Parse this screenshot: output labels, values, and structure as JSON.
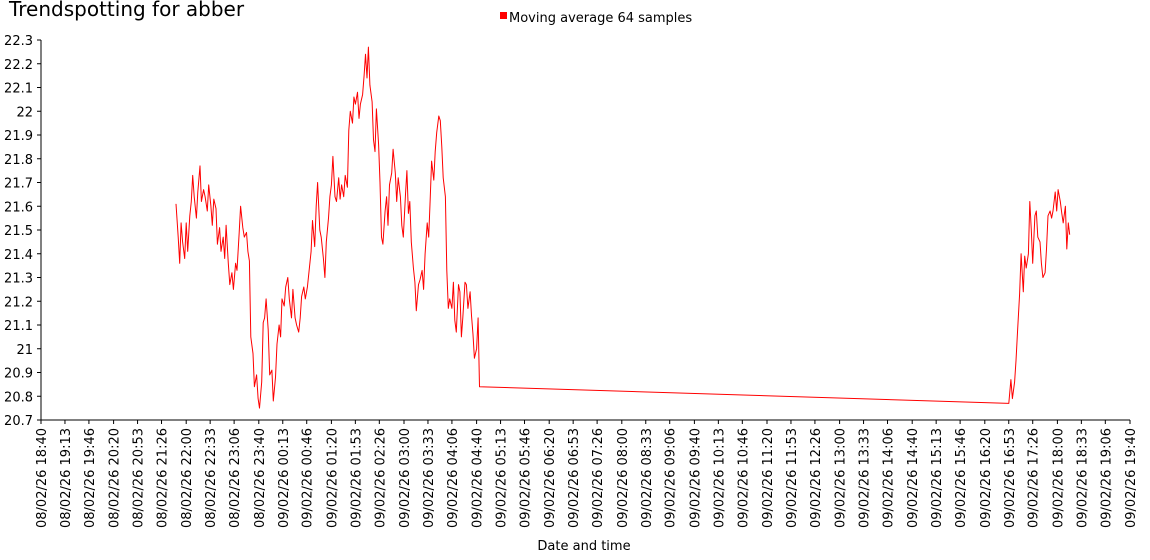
{
  "chart_data": {
    "type": "line",
    "title": "Trendspotting for abber",
    "xlabel": "Date and time",
    "ylabel": "",
    "legend_position": "top-center",
    "grid": false,
    "ylim": [
      20.7,
      22.3
    ],
    "y_ticks": [
      "20.7",
      "20.8",
      "20.9",
      "21",
      "21.1",
      "21.2",
      "21.3",
      "21.4",
      "21.5",
      "21.6",
      "21.7",
      "21.8",
      "21.9",
      "22",
      "22.1",
      "22.2",
      "22.3"
    ],
    "x_range": [
      "08/02/26 18:40",
      "09/02/26 19:40"
    ],
    "x_ticks": [
      "08/02/26 18:40",
      "08/02/26 19:13",
      "08/02/26 19:46",
      "08/02/26 20:20",
      "08/02/26 20:53",
      "08/02/26 21:26",
      "08/02/26 22:00",
      "08/02/26 22:33",
      "08/02/26 23:06",
      "08/02/26 23:40",
      "09/02/26 00:13",
      "09/02/26 00:46",
      "09/02/26 01:20",
      "09/02/26 01:53",
      "09/02/26 02:26",
      "09/02/26 03:00",
      "09/02/26 03:33",
      "09/02/26 04:06",
      "09/02/26 04:40",
      "09/02/26 05:13",
      "09/02/26 05:46",
      "09/02/26 06:20",
      "09/02/26 06:53",
      "09/02/26 07:26",
      "09/02/26 08:00",
      "09/02/26 08:33",
      "09/02/26 09:06",
      "09/02/26 09:40",
      "09/02/26 10:13",
      "09/02/26 10:46",
      "09/02/26 11:20",
      "09/02/26 11:53",
      "09/02/26 12:26",
      "09/02/26 13:00",
      "09/02/26 13:33",
      "09/02/26 14:06",
      "09/02/26 14:40",
      "09/02/26 15:13",
      "09/02/26 15:46",
      "09/02/26 16:20",
      "09/02/26 16:53",
      "09/02/26 17:26",
      "09/02/26 18:00",
      "09/02/26 18:33",
      "09/02/26 19:06",
      "09/02/26 19:40"
    ],
    "series": [
      {
        "name": "Moving average 64 samples",
        "color": "#ff0000",
        "points": [
          [
            "08/02/26 21:46",
            21.61
          ],
          [
            "08/02/26 21:49",
            21.47
          ],
          [
            "08/02/26 21:51",
            21.36
          ],
          [
            "08/02/26 21:53",
            21.53
          ],
          [
            "08/02/26 21:55",
            21.45
          ],
          [
            "08/02/26 21:58",
            21.38
          ],
          [
            "08/02/26 22:00",
            21.53
          ],
          [
            "08/02/26 22:02",
            21.41
          ],
          [
            "08/02/26 22:05",
            21.56
          ],
          [
            "08/02/26 22:07",
            21.62
          ],
          [
            "08/02/26 22:09",
            21.73
          ],
          [
            "08/02/26 22:11",
            21.64
          ],
          [
            "08/02/26 22:14",
            21.55
          ],
          [
            "08/02/26 22:16",
            21.66
          ],
          [
            "08/02/26 22:19",
            21.77
          ],
          [
            "08/02/26 22:21",
            21.62
          ],
          [
            "08/02/26 22:24",
            21.67
          ],
          [
            "08/02/26 22:26",
            21.64
          ],
          [
            "08/02/26 22:29",
            21.58
          ],
          [
            "08/02/26 22:31",
            21.69
          ],
          [
            "08/02/26 22:34",
            21.6
          ],
          [
            "08/02/26 22:36",
            21.52
          ],
          [
            "08/02/26 22:38",
            21.63
          ],
          [
            "08/02/26 22:41",
            21.59
          ],
          [
            "08/02/26 22:43",
            21.44
          ],
          [
            "08/02/26 22:46",
            21.51
          ],
          [
            "08/02/26 22:48",
            21.41
          ],
          [
            "08/02/26 22:51",
            21.47
          ],
          [
            "08/02/26 22:53",
            21.38
          ],
          [
            "08/02/26 22:55",
            21.52
          ],
          [
            "08/02/26 22:58",
            21.36
          ],
          [
            "08/02/26 23:00",
            21.27
          ],
          [
            "08/02/26 23:03",
            21.32
          ],
          [
            "08/02/26 23:05",
            21.25
          ],
          [
            "08/02/26 23:08",
            21.36
          ],
          [
            "08/02/26 23:10",
            21.33
          ],
          [
            "08/02/26 23:13",
            21.49
          ],
          [
            "08/02/26 23:15",
            21.6
          ],
          [
            "08/02/26 23:18",
            21.51
          ],
          [
            "08/02/26 23:20",
            21.47
          ],
          [
            "08/02/26 23:23",
            21.49
          ],
          [
            "08/02/26 23:25",
            21.41
          ],
          [
            "08/02/26 23:27",
            21.37
          ],
          [
            "08/02/26 23:29",
            21.05
          ],
          [
            "08/02/26 23:32",
            20.98
          ],
          [
            "08/02/26 23:34",
            20.84
          ],
          [
            "08/02/26 23:37",
            20.89
          ],
          [
            "08/02/26 23:39",
            20.79
          ],
          [
            "08/02/26 23:41",
            20.75
          ],
          [
            "08/02/26 23:44",
            20.86
          ],
          [
            "08/02/26 23:46",
            21.11
          ],
          [
            "08/02/26 23:48",
            21.13
          ],
          [
            "08/02/26 23:50",
            21.21
          ],
          [
            "08/02/26 23:53",
            21.08
          ],
          [
            "08/02/26 23:55",
            20.89
          ],
          [
            "08/02/26 23:58",
            20.91
          ],
          [
            "09/02/26 00:00",
            20.78
          ],
          [
            "09/02/26 00:03",
            20.88
          ],
          [
            "09/02/26 00:05",
            21.02
          ],
          [
            "09/02/26 00:08",
            21.1
          ],
          [
            "09/02/26 00:10",
            21.05
          ],
          [
            "09/02/26 00:12",
            21.21
          ],
          [
            "09/02/26 00:15",
            21.18
          ],
          [
            "09/02/26 00:17",
            21.26
          ],
          [
            "09/02/26 00:20",
            21.3
          ],
          [
            "09/02/26 00:22",
            21.21
          ],
          [
            "09/02/26 00:25",
            21.13
          ],
          [
            "09/02/26 00:27",
            21.25
          ],
          [
            "09/02/26 00:30",
            21.13
          ],
          [
            "09/02/26 00:32",
            21.1
          ],
          [
            "09/02/26 00:35",
            21.07
          ],
          [
            "09/02/26 00:37",
            21.13
          ],
          [
            "09/02/26 00:39",
            21.22
          ],
          [
            "09/02/26 00:42",
            21.26
          ],
          [
            "09/02/26 00:44",
            21.21
          ],
          [
            "09/02/26 00:47",
            21.26
          ],
          [
            "09/02/26 00:49",
            21.32
          ],
          [
            "09/02/26 00:52",
            21.41
          ],
          [
            "09/02/26 00:54",
            21.54
          ],
          [
            "09/02/26 00:57",
            21.43
          ],
          [
            "09/02/26 00:59",
            21.6
          ],
          [
            "09/02/26 01:01",
            21.7
          ],
          [
            "09/02/26 01:04",
            21.5
          ],
          [
            "09/02/26 01:06",
            21.47
          ],
          [
            "09/02/26 01:09",
            21.38
          ],
          [
            "09/02/26 01:11",
            21.3
          ],
          [
            "09/02/26 01:13",
            21.45
          ],
          [
            "09/02/26 01:16",
            21.55
          ],
          [
            "09/02/26 01:18",
            21.64
          ],
          [
            "09/02/26 01:20",
            21.69
          ],
          [
            "09/02/26 01:22",
            21.81
          ],
          [
            "09/02/26 01:25",
            21.64
          ],
          [
            "09/02/26 01:27",
            21.62
          ],
          [
            "09/02/26 01:30",
            21.72
          ],
          [
            "09/02/26 01:32",
            21.63
          ],
          [
            "09/02/26 01:34",
            21.69
          ],
          [
            "09/02/26 01:37",
            21.64
          ],
          [
            "09/02/26 01:39",
            21.73
          ],
          [
            "09/02/26 01:42",
            21.68
          ],
          [
            "09/02/26 01:44",
            21.92
          ],
          [
            "09/02/26 01:46",
            22.0
          ],
          [
            "09/02/26 01:49",
            21.95
          ],
          [
            "09/02/26 01:51",
            22.06
          ],
          [
            "09/02/26 01:53",
            22.03
          ],
          [
            "09/02/26 01:56",
            22.08
          ],
          [
            "09/02/26 01:58",
            21.97
          ],
          [
            "09/02/26 02:00",
            22.03
          ],
          [
            "09/02/26 02:03",
            22.07
          ],
          [
            "09/02/26 02:05",
            22.15
          ],
          [
            "09/02/26 02:07",
            22.24
          ],
          [
            "09/02/26 02:09",
            22.14
          ],
          [
            "09/02/26 02:11",
            22.27
          ],
          [
            "09/02/26 02:13",
            22.11
          ],
          [
            "09/02/26 02:16",
            22.04
          ],
          [
            "09/02/26 02:18",
            21.88
          ],
          [
            "09/02/26 02:20",
            21.83
          ],
          [
            "09/02/26 02:22",
            22.01
          ],
          [
            "09/02/26 02:25",
            21.86
          ],
          [
            "09/02/26 02:27",
            21.7
          ],
          [
            "09/02/26 02:29",
            21.47
          ],
          [
            "09/02/26 02:31",
            21.44
          ],
          [
            "09/02/26 02:34",
            21.58
          ],
          [
            "09/02/26 02:36",
            21.64
          ],
          [
            "09/02/26 02:38",
            21.52
          ],
          [
            "09/02/26 02:40",
            21.69
          ],
          [
            "09/02/26 02:43",
            21.74
          ],
          [
            "09/02/26 02:45",
            21.84
          ],
          [
            "09/02/26 02:48",
            21.74
          ],
          [
            "09/02/26 02:50",
            21.62
          ],
          [
            "09/02/26 02:52",
            21.72
          ],
          [
            "09/02/26 02:55",
            21.64
          ],
          [
            "09/02/26 02:57",
            21.52
          ],
          [
            "09/02/26 02:59",
            21.47
          ],
          [
            "09/02/26 03:02",
            21.65
          ],
          [
            "09/02/26 03:04",
            21.75
          ],
          [
            "09/02/26 03:06",
            21.57
          ],
          [
            "09/02/26 03:08",
            21.62
          ],
          [
            "09/02/26 03:10",
            21.45
          ],
          [
            "09/02/26 03:13",
            21.34
          ],
          [
            "09/02/26 03:15",
            21.28
          ],
          [
            "09/02/26 03:17",
            21.16
          ],
          [
            "09/02/26 03:20",
            21.27
          ],
          [
            "09/02/26 03:22",
            21.29
          ],
          [
            "09/02/26 03:25",
            21.33
          ],
          [
            "09/02/26 03:27",
            21.25
          ],
          [
            "09/02/26 03:29",
            21.4
          ],
          [
            "09/02/26 03:32",
            21.53
          ],
          [
            "09/02/26 03:34",
            21.47
          ],
          [
            "09/02/26 03:36",
            21.62
          ],
          [
            "09/02/26 03:38",
            21.79
          ],
          [
            "09/02/26 03:41",
            21.71
          ],
          [
            "09/02/26 03:43",
            21.83
          ],
          [
            "09/02/26 03:45",
            21.91
          ],
          [
            "09/02/26 03:48",
            21.98
          ],
          [
            "09/02/26 03:50",
            21.96
          ],
          [
            "09/02/26 03:52",
            21.85
          ],
          [
            "09/02/26 03:54",
            21.72
          ],
          [
            "09/02/26 03:57",
            21.64
          ],
          [
            "09/02/26 03:59",
            21.33
          ],
          [
            "09/02/26 04:01",
            21.17
          ],
          [
            "09/02/26 04:03",
            21.21
          ],
          [
            "09/02/26 04:06",
            21.17
          ],
          [
            "09/02/26 04:08",
            21.28
          ],
          [
            "09/02/26 04:10",
            21.12
          ],
          [
            "09/02/26 04:12",
            21.07
          ],
          [
            "09/02/26 04:15",
            21.27
          ],
          [
            "09/02/26 04:17",
            21.24
          ],
          [
            "09/02/26 04:19",
            21.05
          ],
          [
            "09/02/26 04:21",
            21.13
          ],
          [
            "09/02/26 04:24",
            21.28
          ],
          [
            "09/02/26 04:26",
            21.27
          ],
          [
            "09/02/26 04:28",
            21.17
          ],
          [
            "09/02/26 04:31",
            21.24
          ],
          [
            "09/02/26 04:33",
            21.14
          ],
          [
            "09/02/26 04:35",
            21.06
          ],
          [
            "09/02/26 04:37",
            20.96
          ],
          [
            "09/02/26 04:40",
            21.0
          ],
          [
            "09/02/26 04:42",
            21.13
          ],
          [
            "09/02/26 04:44",
            20.84
          ],
          [
            "09/02/26 16:53",
            20.77
          ],
          [
            "09/02/26 16:56",
            20.87
          ],
          [
            "09/02/26 16:58",
            20.79
          ],
          [
            "09/02/26 17:01",
            20.86
          ],
          [
            "09/02/26 17:03",
            20.95
          ],
          [
            "09/02/26 17:05",
            21.07
          ],
          [
            "09/02/26 17:08",
            21.23
          ],
          [
            "09/02/26 17:10",
            21.4
          ],
          [
            "09/02/26 17:13",
            21.24
          ],
          [
            "09/02/26 17:15",
            21.39
          ],
          [
            "09/02/26 17:17",
            21.34
          ],
          [
            "09/02/26 17:20",
            21.4
          ],
          [
            "09/02/26 17:22",
            21.62
          ],
          [
            "09/02/26 17:24",
            21.5
          ],
          [
            "09/02/26 17:26",
            21.36
          ],
          [
            "09/02/26 17:29",
            21.56
          ],
          [
            "09/02/26 17:31",
            21.58
          ],
          [
            "09/02/26 17:33",
            21.47
          ],
          [
            "09/02/26 17:36",
            21.45
          ],
          [
            "09/02/26 17:38",
            21.36
          ],
          [
            "09/02/26 17:40",
            21.3
          ],
          [
            "09/02/26 17:43",
            21.32
          ],
          [
            "09/02/26 17:45",
            21.42
          ],
          [
            "09/02/26 17:47",
            21.56
          ],
          [
            "09/02/26 17:50",
            21.58
          ],
          [
            "09/02/26 17:52",
            21.55
          ],
          [
            "09/02/26 17:54",
            21.58
          ],
          [
            "09/02/26 17:57",
            21.66
          ],
          [
            "09/02/26 17:59",
            21.58
          ],
          [
            "09/02/26 18:01",
            21.67
          ],
          [
            "09/02/26 18:04",
            21.62
          ],
          [
            "09/02/26 18:06",
            21.57
          ],
          [
            "09/02/26 18:08",
            21.53
          ],
          [
            "09/02/26 18:11",
            21.6
          ],
          [
            "09/02/26 18:13",
            21.42
          ],
          [
            "09/02/26 18:15",
            21.53
          ],
          [
            "09/02/26 18:17",
            21.48
          ]
        ]
      }
    ]
  }
}
